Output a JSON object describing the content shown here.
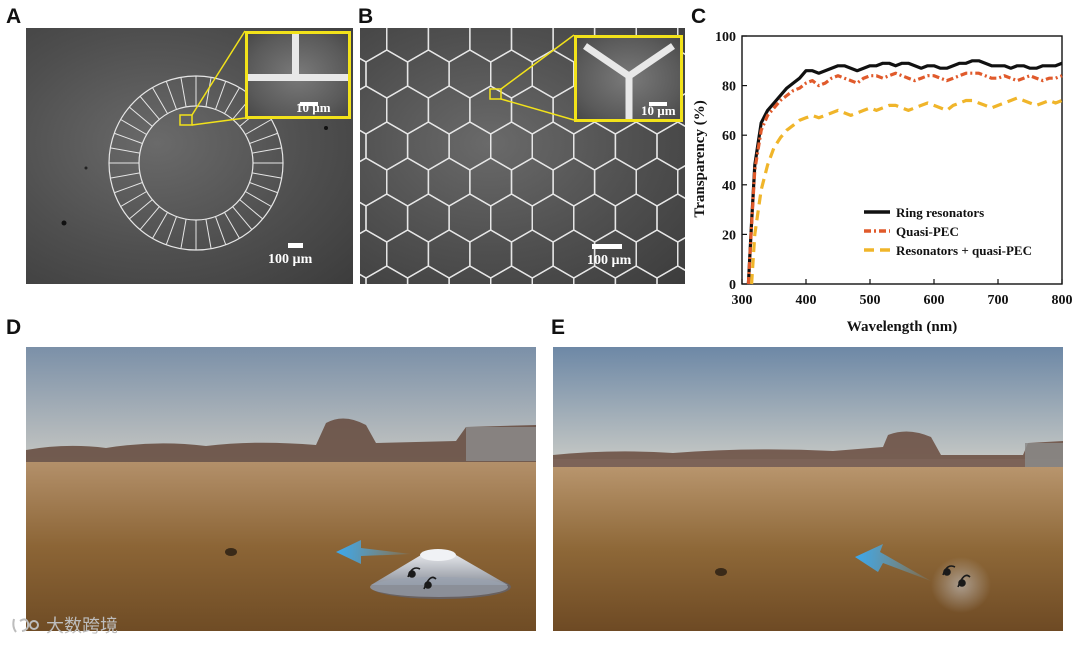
{
  "panels": {
    "a": {
      "letter": "A",
      "scale_bar": "100 µm",
      "inset_scale_bar": "10 µm"
    },
    "b": {
      "letter": "B",
      "scale_bar": "100 µm",
      "inset_scale_bar": "10 µm"
    },
    "c": {
      "letter": "C"
    },
    "d": {
      "letter": "D"
    },
    "e": {
      "letter": "E"
    }
  },
  "chart_data": {
    "type": "line",
    "xlabel": "Wavelength (nm)",
    "ylabel": "Transparency (%)",
    "xlim": [
      300,
      800
    ],
    "ylim": [
      0,
      100
    ],
    "x_ticks": [
      "300",
      "400",
      "500",
      "600",
      "700",
      "800"
    ],
    "y_ticks": [
      "0",
      "20",
      "40",
      "60",
      "80",
      "100"
    ],
    "legend_position": "bottom-right",
    "grid": false,
    "series": [
      {
        "name": "Ring resonators",
        "color": "#111111",
        "style": "solid",
        "x": [
          310,
          315,
          320,
          330,
          340,
          350,
          360,
          370,
          380,
          390,
          400,
          410,
          420,
          430,
          440,
          450,
          460,
          470,
          480,
          490,
          500,
          510,
          520,
          530,
          540,
          550,
          560,
          570,
          580,
          590,
          600,
          610,
          620,
          630,
          640,
          650,
          660,
          670,
          680,
          690,
          700,
          710,
          720,
          730,
          740,
          750,
          760,
          770,
          780,
          790,
          800
        ],
        "y": [
          0,
          25,
          48,
          65,
          70,
          73,
          76,
          79,
          81,
          83,
          86,
          86,
          85,
          86,
          87,
          88,
          88,
          87,
          86,
          87,
          88,
          88,
          89,
          89,
          88,
          89,
          89,
          88,
          87,
          88,
          88,
          87,
          87,
          88,
          89,
          89,
          90,
          90,
          89,
          88,
          88,
          88,
          87,
          88,
          88,
          87,
          87,
          88,
          88,
          88,
          89
        ]
      },
      {
        "name": "Quasi-PEC",
        "color": "#e05a2b",
        "style": "dash-dot",
        "x": [
          310,
          315,
          320,
          330,
          340,
          350,
          360,
          370,
          380,
          390,
          400,
          410,
          420,
          430,
          440,
          450,
          460,
          470,
          480,
          490,
          500,
          510,
          520,
          530,
          540,
          550,
          560,
          570,
          580,
          590,
          600,
          610,
          620,
          630,
          640,
          650,
          660,
          670,
          680,
          690,
          700,
          710,
          720,
          730,
          740,
          750,
          760,
          770,
          780,
          790,
          800
        ],
        "y": [
          0,
          24,
          46,
          62,
          68,
          71,
          74,
          76,
          78,
          79,
          81,
          82,
          80,
          81,
          83,
          84,
          83,
          82,
          81,
          83,
          84,
          84,
          83,
          84,
          85,
          84,
          83,
          82,
          83,
          84,
          84,
          83,
          82,
          83,
          84,
          85,
          85,
          85,
          84,
          83,
          83,
          84,
          83,
          82,
          83,
          84,
          83,
          82,
          83,
          83,
          84
        ]
      },
      {
        "name": "Resonators + quasi-PEC",
        "color": "#f0b52a",
        "style": "dashed",
        "x": [
          315,
          320,
          330,
          340,
          350,
          360,
          370,
          380,
          390,
          400,
          410,
          420,
          430,
          440,
          450,
          460,
          470,
          480,
          490,
          500,
          510,
          520,
          530,
          540,
          550,
          560,
          570,
          580,
          590,
          600,
          610,
          620,
          630,
          640,
          650,
          660,
          670,
          680,
          690,
          700,
          710,
          720,
          730,
          740,
          750,
          760,
          770,
          780,
          790,
          800
        ],
        "y": [
          0,
          20,
          38,
          48,
          55,
          59,
          62,
          64,
          66,
          67,
          68,
          67,
          68,
          69,
          70,
          69,
          68,
          69,
          70,
          71,
          70,
          71,
          72,
          72,
          71,
          70,
          71,
          72,
          73,
          72,
          71,
          70,
          72,
          73,
          74,
          74,
          73,
          72,
          71,
          72,
          73,
          74,
          75,
          74,
          73,
          72,
          73,
          74,
          73,
          74
        ]
      }
    ]
  },
  "watermark": {
    "text": "大数跨境"
  }
}
